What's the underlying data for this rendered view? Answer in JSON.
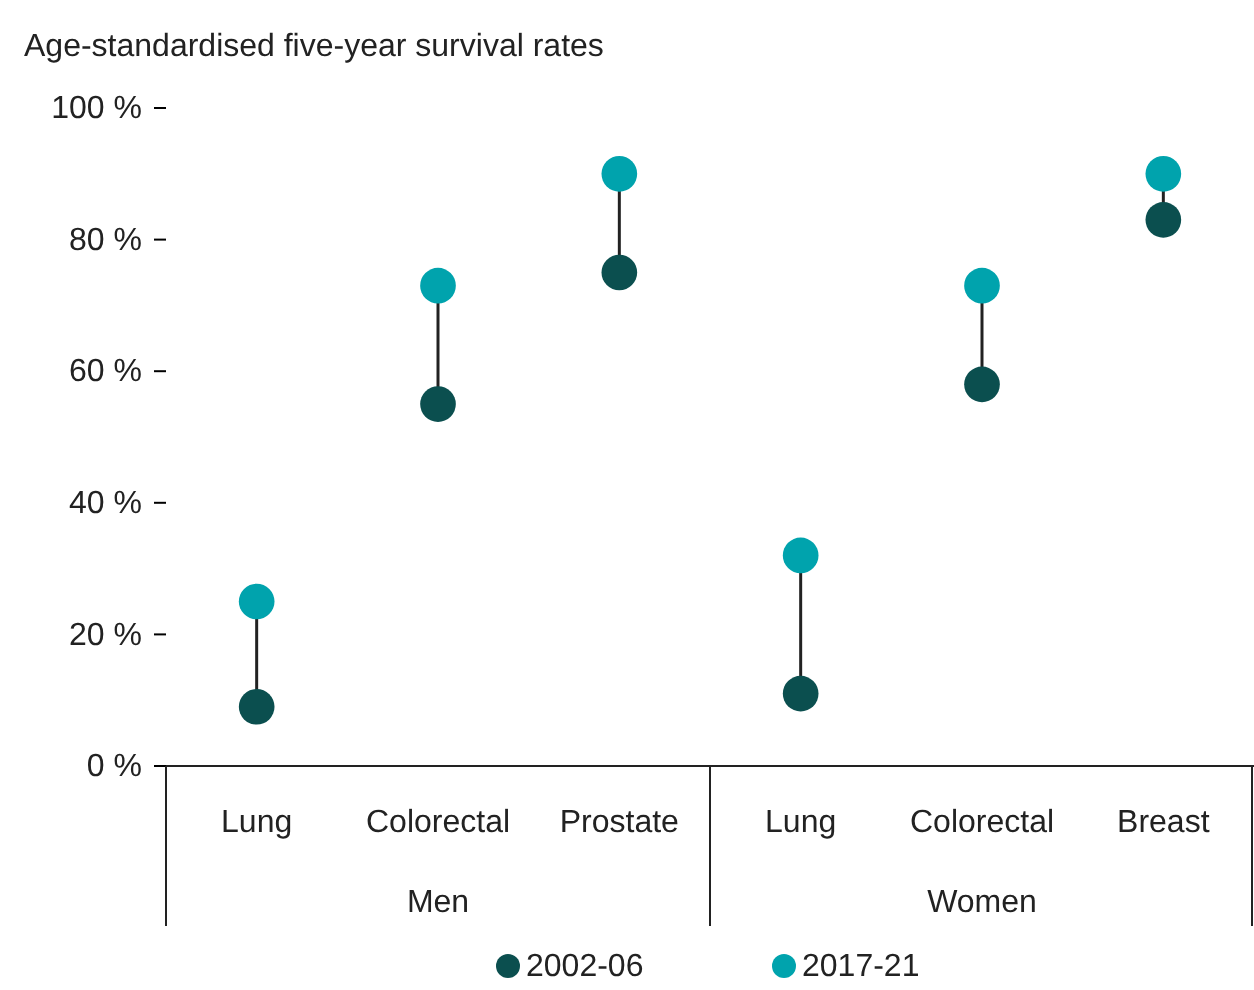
{
  "chart_data": {
    "type": "scatter",
    "subtitle": "Age-standardised five-year survival rates",
    "categories": [
      "Lung",
      "Colorectal",
      "Prostate",
      "Lung",
      "Colorectal",
      "Breast"
    ],
    "series": [
      {
        "name": "2002-06",
        "color": "#0b4f4f",
        "values": [
          9,
          55,
          75,
          11,
          58,
          83
        ]
      },
      {
        "name": "2017-21",
        "color": "#00a3ad",
        "values": [
          25,
          73,
          90,
          32,
          73,
          90
        ]
      }
    ],
    "ylim": [
      0,
      100
    ],
    "yticks": [
      {
        "value": 0,
        "label": "0 %"
      },
      {
        "value": 20,
        "label": "20 %"
      },
      {
        "value": 40,
        "label": "40 %"
      },
      {
        "value": 60,
        "label": "60 %"
      },
      {
        "value": 80,
        "label": "80 %"
      },
      {
        "value": 100,
        "label": "100 %"
      }
    ],
    "annotations": [
      "Men",
      "Women"
    ],
    "marker": "circle",
    "legend": "bottom",
    "grid": false
  }
}
